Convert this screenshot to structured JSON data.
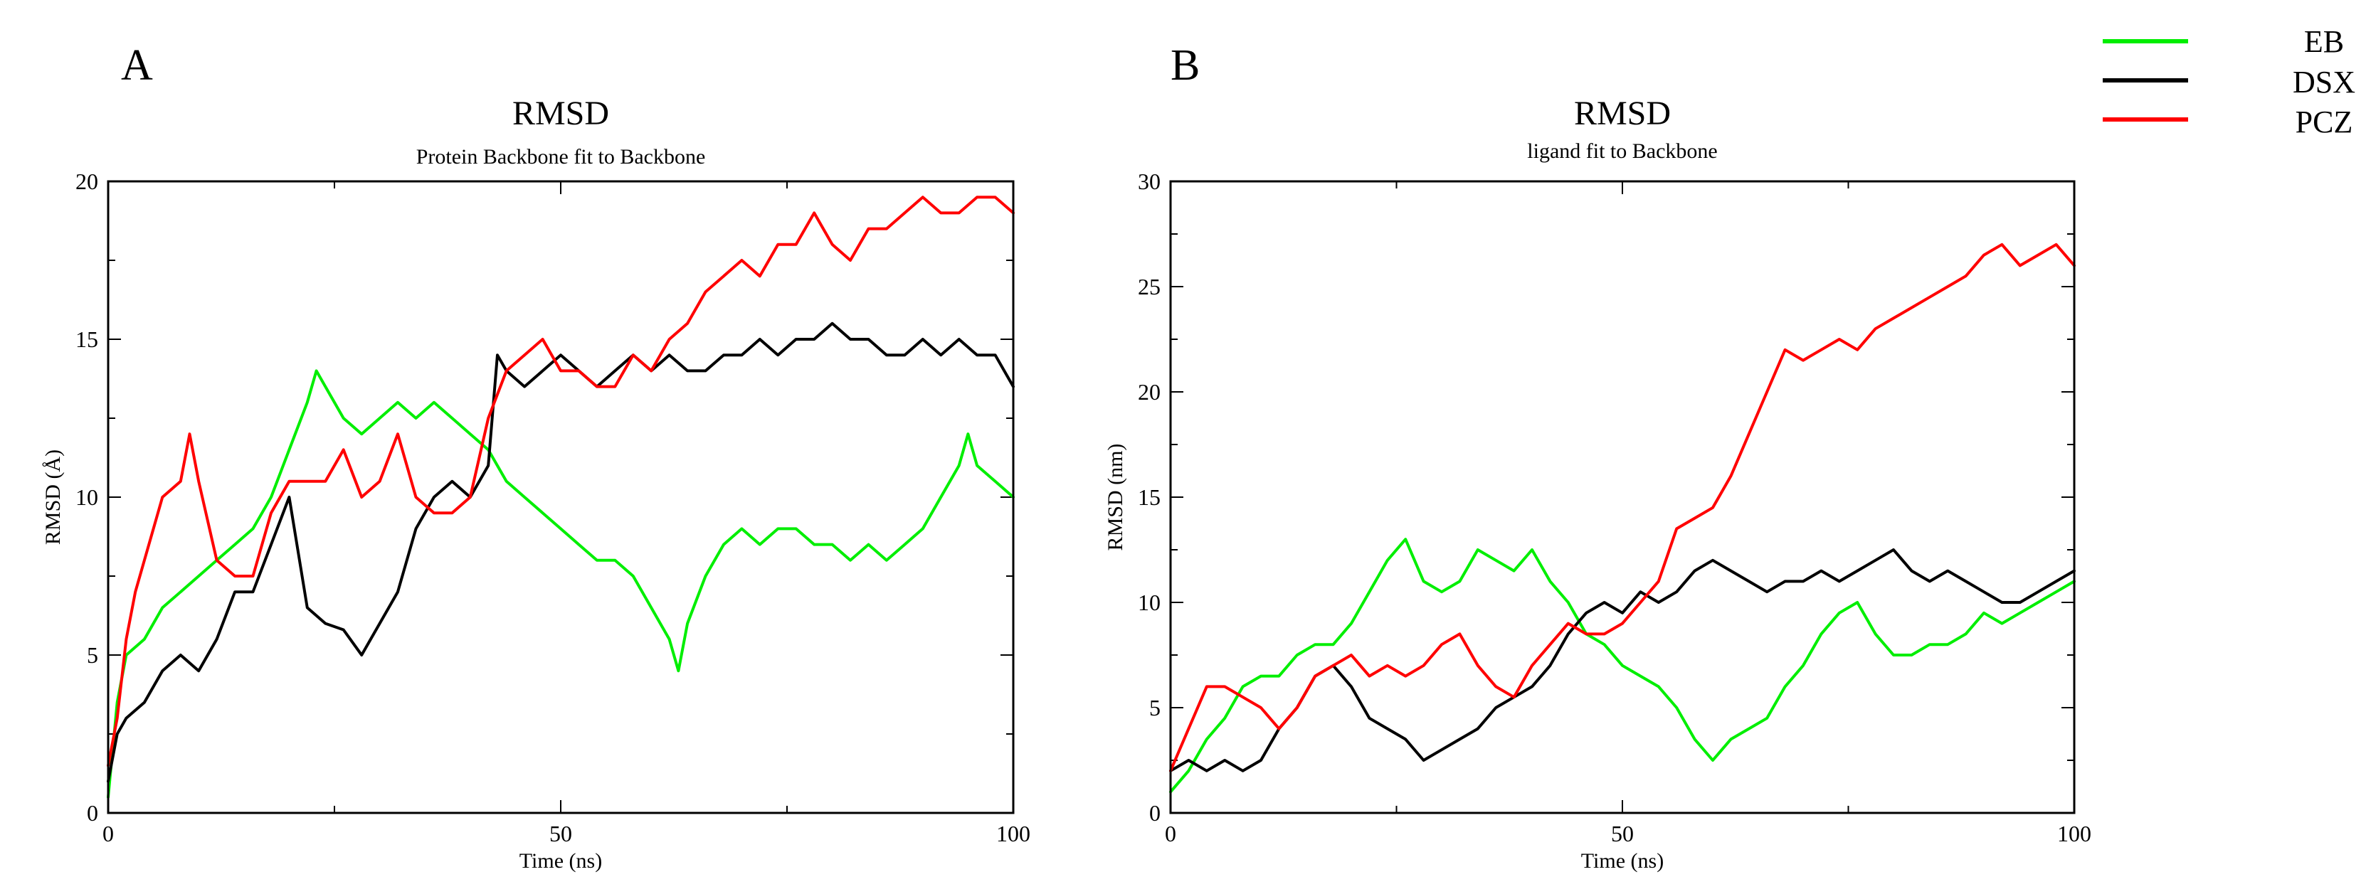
{
  "legend": {
    "entries": [
      {
        "label": "EB",
        "color": "#00ee00"
      },
      {
        "label": "DSX",
        "color": "#000000"
      },
      {
        "label": "PCZ",
        "color": "#ff0000"
      }
    ]
  },
  "chart_data": [
    {
      "panel": "A",
      "type": "line",
      "title": "RMSD",
      "subtitle": "Protein Backbone fit to Backbone",
      "xlabel": "Time (ns)",
      "ylabel": "RMSD (Å)",
      "xlim": [
        0,
        100
      ],
      "ylim": [
        0,
        20
      ],
      "xticks": [
        0,
        50,
        100
      ],
      "yticks": [
        0,
        5,
        10,
        15,
        20
      ],
      "legend_position": "top-right",
      "series": [
        {
          "name": "EB",
          "color": "#00ee00",
          "x": [
            0,
            1,
            2,
            4,
            6,
            8,
            10,
            12,
            14,
            16,
            18,
            20,
            22,
            23,
            24,
            26,
            28,
            30,
            32,
            34,
            36,
            38,
            40,
            42,
            44,
            46,
            48,
            50,
            52,
            54,
            56,
            58,
            60,
            62,
            63,
            64,
            66,
            68,
            70,
            72,
            74,
            76,
            78,
            80,
            82,
            84,
            86,
            88,
            90,
            92,
            94,
            95,
            96,
            98,
            100
          ],
          "y": [
            0.5,
            3.5,
            5,
            5.5,
            6.5,
            7,
            7.5,
            8,
            8.5,
            9,
            10,
            11.5,
            13,
            14,
            13.5,
            12.5,
            12,
            12.5,
            13,
            12.5,
            13,
            12.5,
            12,
            11.5,
            10.5,
            10,
            9.5,
            9,
            8.5,
            8,
            8,
            7.5,
            6.5,
            5.5,
            4.5,
            6,
            7.5,
            8.5,
            9,
            8.5,
            9,
            9,
            8.5,
            8.5,
            8,
            8.5,
            8,
            8.5,
            9,
            10,
            11,
            12,
            11,
            10.5,
            10
          ]
        },
        {
          "name": "DSX",
          "color": "#000000",
          "x": [
            0,
            1,
            2,
            4,
            6,
            8,
            10,
            12,
            14,
            16,
            18,
            20,
            22,
            24,
            26,
            28,
            30,
            32,
            34,
            36,
            38,
            40,
            42,
            43,
            44,
            46,
            48,
            50,
            52,
            54,
            56,
            58,
            60,
            62,
            64,
            66,
            68,
            70,
            72,
            74,
            76,
            78,
            80,
            82,
            84,
            86,
            88,
            90,
            92,
            94,
            96,
            98,
            100
          ],
          "y": [
            1,
            2.5,
            3,
            3.5,
            4.5,
            5,
            4.5,
            5.5,
            7,
            7,
            8.5,
            10,
            6.5,
            6,
            5.8,
            5,
            6,
            7,
            9,
            10,
            10.5,
            10,
            11,
            14.5,
            14,
            13.5,
            14,
            14.5,
            14,
            13.5,
            14,
            14.5,
            14,
            14.5,
            14,
            14,
            14.5,
            14.5,
            15,
            14.5,
            15,
            15,
            15.5,
            15,
            15,
            14.5,
            14.5,
            15,
            14.5,
            15,
            14.5,
            14.5,
            13.5
          ]
        },
        {
          "name": "PCZ",
          "color": "#ff0000",
          "x": [
            0,
            1,
            2,
            3,
            4,
            5,
            6,
            8,
            9,
            10,
            12,
            14,
            16,
            18,
            20,
            22,
            24,
            26,
            28,
            30,
            32,
            34,
            36,
            38,
            40,
            42,
            44,
            46,
            48,
            50,
            52,
            54,
            56,
            58,
            60,
            62,
            64,
            66,
            68,
            70,
            72,
            74,
            76,
            78,
            80,
            82,
            84,
            86,
            88,
            90,
            92,
            94,
            96,
            98,
            100
          ],
          "y": [
            1.5,
            3,
            5.5,
            7,
            8,
            9,
            10,
            10.5,
            12,
            10.5,
            8,
            7.5,
            7.5,
            9.5,
            10.5,
            10.5,
            10.5,
            11.5,
            10,
            10.5,
            12,
            10,
            9.5,
            9.5,
            10,
            12.5,
            14,
            14.5,
            15,
            14,
            14,
            13.5,
            13.5,
            14.5,
            14,
            15,
            15.5,
            16.5,
            17,
            17.5,
            17,
            18,
            18,
            19,
            18,
            17.5,
            18.5,
            18.5,
            19,
            19.5,
            19,
            19,
            19.5,
            19.5,
            19
          ]
        }
      ]
    },
    {
      "panel": "B",
      "type": "line",
      "title": "RMSD",
      "subtitle": "ligand fit to Backbone",
      "xlabel": "Time (ns)",
      "ylabel": "RMSD (nm)",
      "xlim": [
        0,
        100
      ],
      "ylim": [
        0,
        30
      ],
      "xticks": [
        0,
        50,
        100
      ],
      "yticks": [
        0,
        5,
        10,
        15,
        20,
        25,
        30
      ],
      "series": [
        {
          "name": "EB",
          "color": "#00ee00",
          "x": [
            0,
            2,
            4,
            6,
            8,
            10,
            12,
            14,
            16,
            18,
            20,
            22,
            24,
            26,
            28,
            30,
            32,
            34,
            36,
            38,
            40,
            42,
            44,
            46,
            48,
            50,
            52,
            54,
            56,
            58,
            60,
            62,
            64,
            66,
            68,
            70,
            72,
            74,
            76,
            78,
            80,
            82,
            84,
            86,
            88,
            90,
            92,
            94,
            96,
            98,
            100
          ],
          "y": [
            1,
            2,
            3.5,
            4.5,
            6,
            6.5,
            6.5,
            7.5,
            8,
            8,
            9,
            10.5,
            12,
            13,
            11,
            10.5,
            11,
            12.5,
            12,
            11.5,
            12.5,
            11,
            10,
            8.5,
            8,
            7,
            6.5,
            6,
            5,
            3.5,
            2.5,
            3.5,
            4,
            4.5,
            6,
            7,
            8.5,
            9.5,
            10,
            8.5,
            7.5,
            7.5,
            8,
            8,
            8.5,
            9.5,
            9,
            9.5,
            10,
            10.5,
            11
          ]
        },
        {
          "name": "DSX",
          "color": "#000000",
          "x": [
            0,
            2,
            4,
            6,
            8,
            10,
            12,
            14,
            16,
            18,
            20,
            22,
            24,
            26,
            28,
            30,
            32,
            34,
            36,
            38,
            40,
            42,
            44,
            46,
            48,
            50,
            52,
            54,
            56,
            58,
            60,
            62,
            64,
            66,
            68,
            70,
            72,
            74,
            76,
            78,
            80,
            82,
            84,
            86,
            88,
            90,
            92,
            94,
            96,
            98,
            100
          ],
          "y": [
            2,
            2.5,
            2,
            2.5,
            2,
            2.5,
            4,
            5,
            6.5,
            7,
            6,
            4.5,
            4,
            3.5,
            2.5,
            3,
            3.5,
            4,
            5,
            5.5,
            6,
            7,
            8.5,
            9.5,
            10,
            9.5,
            10.5,
            10,
            10.5,
            11.5,
            12,
            11.5,
            11,
            10.5,
            11,
            11,
            11.5,
            11,
            11.5,
            12,
            12.5,
            11.5,
            11,
            11.5,
            11,
            10.5,
            10,
            10,
            10.5,
            11,
            11.5
          ]
        },
        {
          "name": "PCZ",
          "color": "#ff0000",
          "x": [
            0,
            2,
            4,
            6,
            8,
            10,
            12,
            14,
            16,
            18,
            20,
            22,
            24,
            26,
            28,
            30,
            32,
            34,
            36,
            38,
            40,
            42,
            44,
            46,
            48,
            50,
            52,
            54,
            56,
            58,
            60,
            62,
            64,
            66,
            68,
            70,
            72,
            74,
            76,
            78,
            80,
            82,
            84,
            86,
            88,
            90,
            92,
            94,
            96,
            98,
            100
          ],
          "y": [
            2,
            4,
            6,
            6,
            5.5,
            5,
            4,
            5,
            6.5,
            7,
            7.5,
            6.5,
            7,
            6.5,
            7,
            8,
            8.5,
            7,
            6,
            5.5,
            7,
            8,
            9,
            8.5,
            8.5,
            9,
            10,
            11,
            13.5,
            14,
            14.5,
            16,
            18,
            20,
            22,
            21.5,
            22,
            22.5,
            22,
            23,
            23.5,
            24,
            24.5,
            25,
            25.5,
            26.5,
            27,
            26,
            26.5,
            27,
            26
          ]
        }
      ]
    }
  ]
}
